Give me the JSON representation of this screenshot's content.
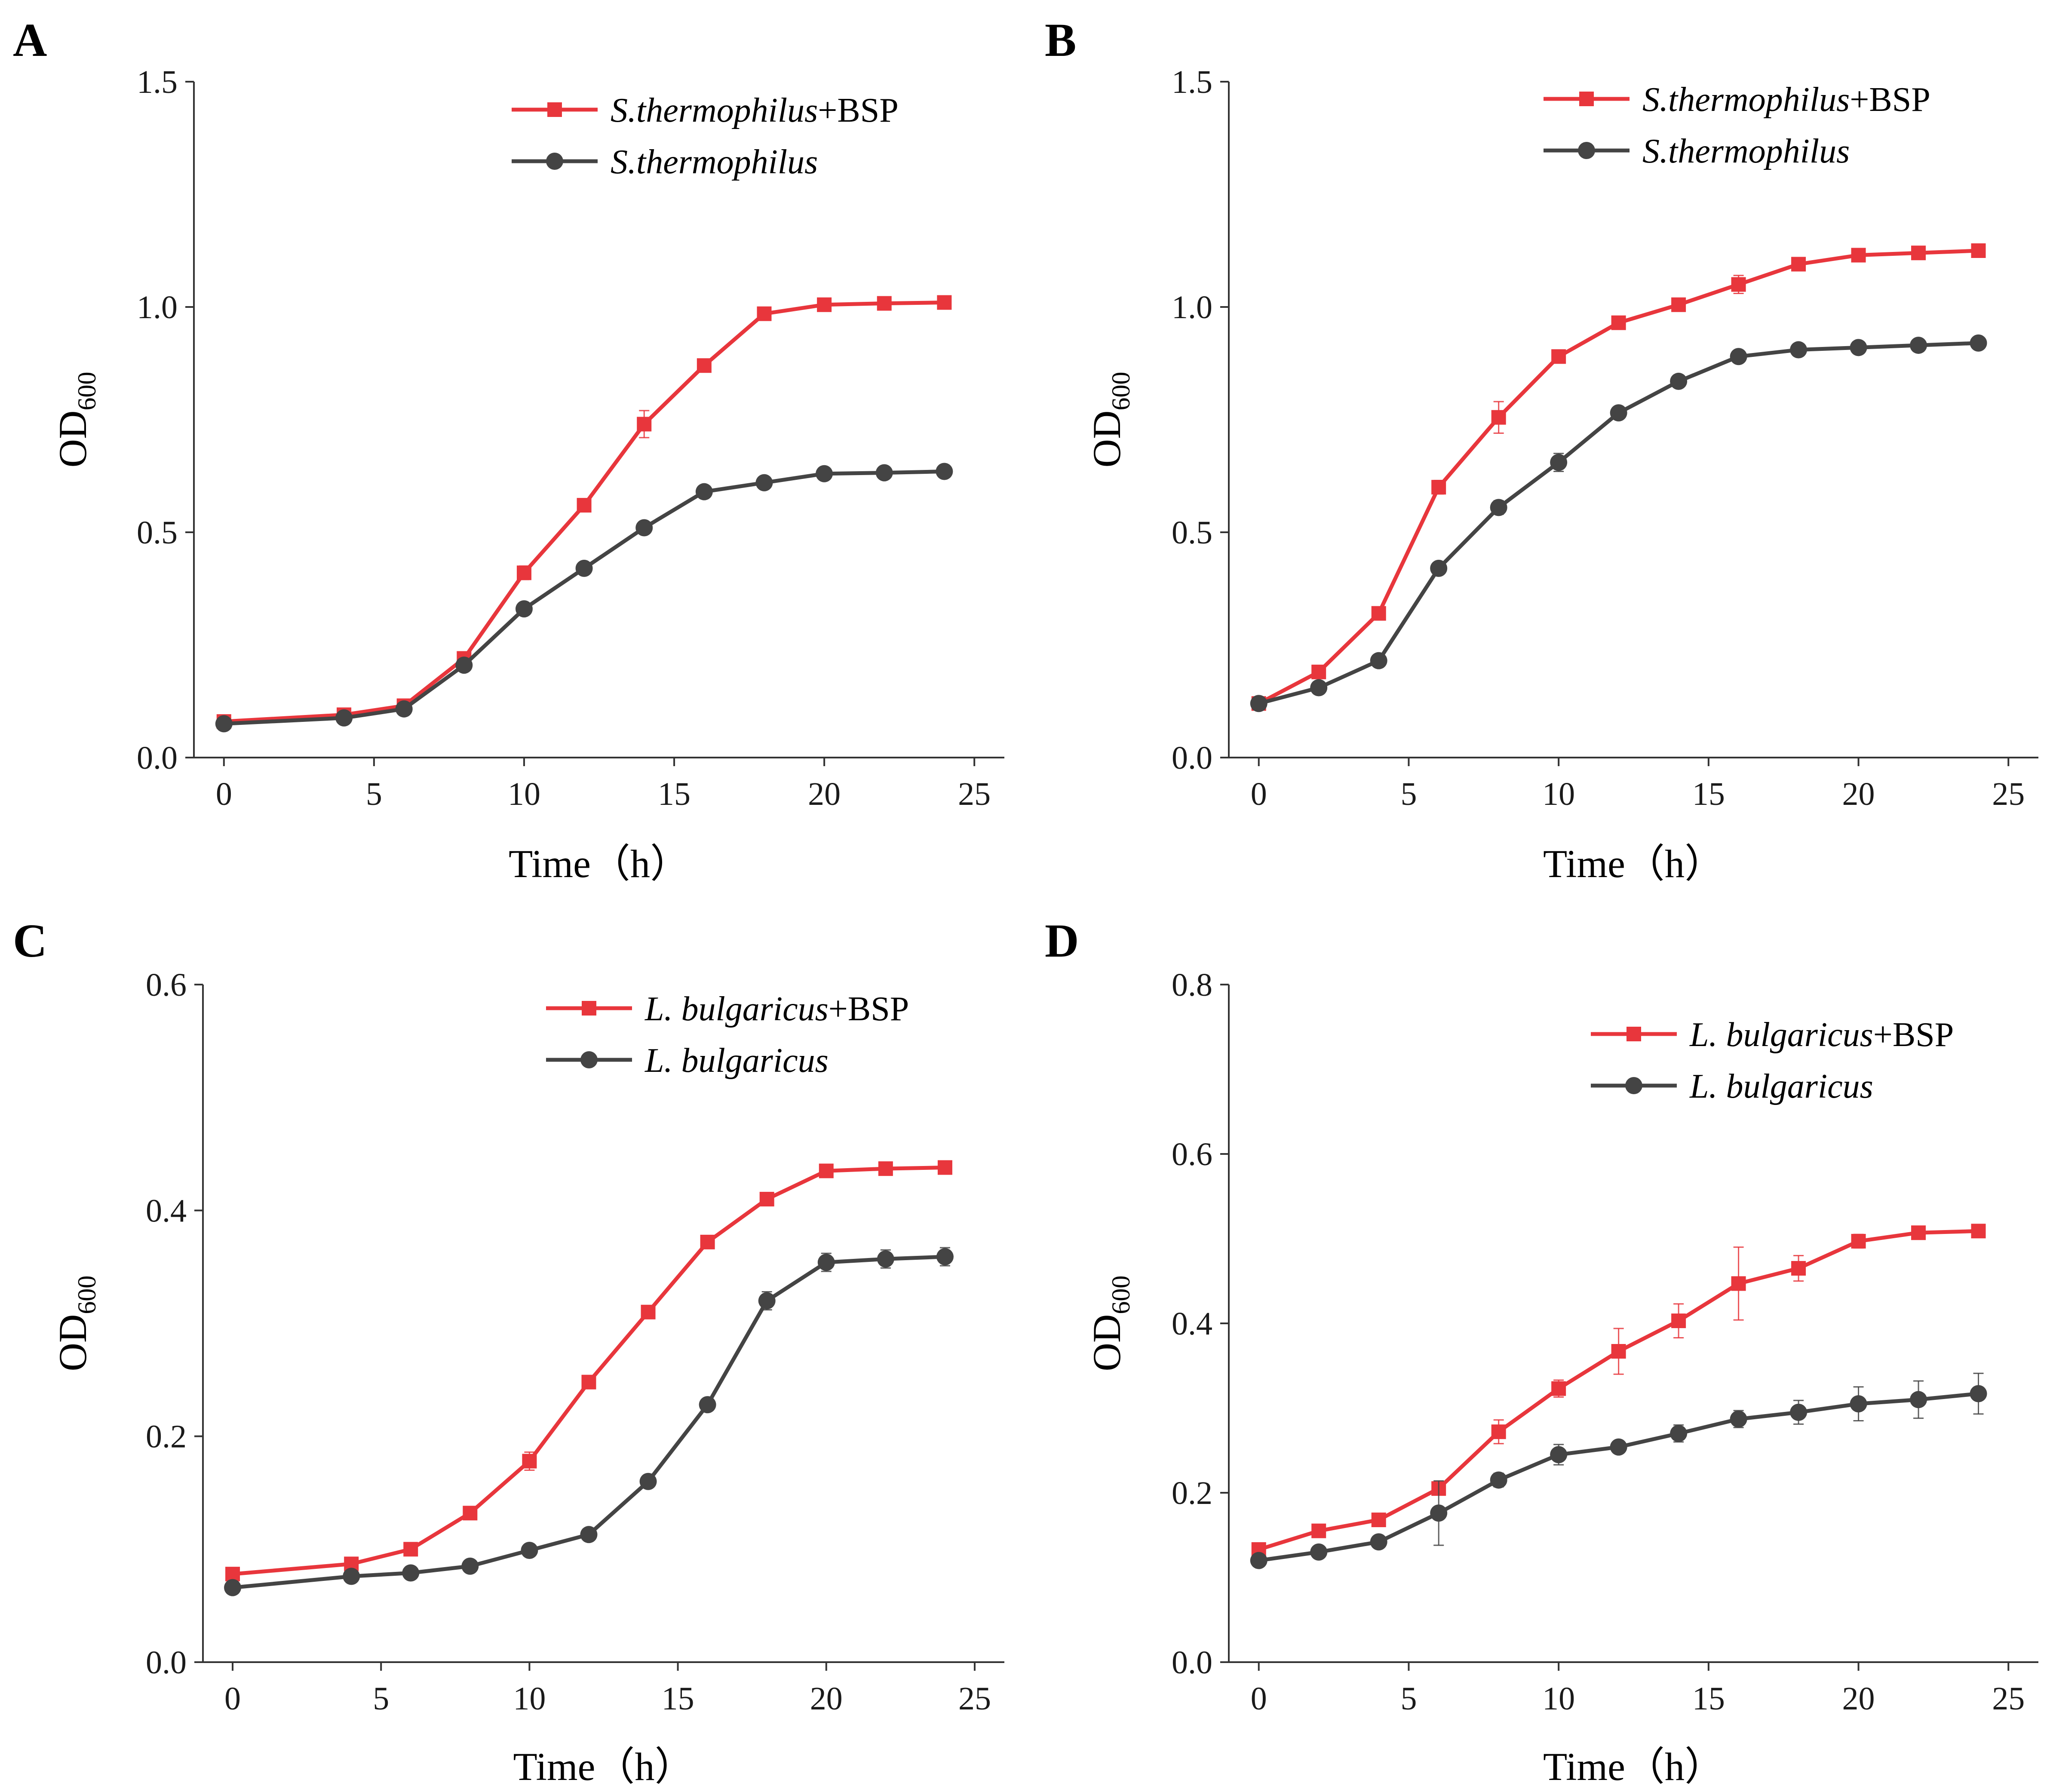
{
  "figure": {
    "colors": {
      "bsp": "#e8363c",
      "control": "#444444"
    }
  },
  "chart_data": [
    {
      "panel": "A",
      "type": "line",
      "xlabel": "Time（h）",
      "ylabel": "OD",
      "ylabel_sub": "600",
      "xlim": [
        -1,
        26
      ],
      "ylim": [
        0,
        1.5
      ],
      "xticks": [
        0,
        5,
        10,
        15,
        20,
        25
      ],
      "yticks": [
        0.0,
        0.5,
        1.0,
        1.5
      ],
      "yticklabels": [
        "0.0",
        "0.5",
        "1.0",
        "1.5"
      ],
      "legend_position": "top-right",
      "series": [
        {
          "name_italic": "S.thermophilus",
          "name_suffix": "+BSP",
          "marker": "square",
          "color": "#e8363c",
          "x": [
            0,
            4,
            6,
            8,
            10,
            12,
            14,
            16,
            18,
            20,
            22,
            24
          ],
          "y": [
            0.08,
            0.095,
            0.115,
            0.22,
            0.41,
            0.56,
            0.74,
            0.87,
            0.985,
            1.005,
            1.008,
            1.01
          ],
          "err": [
            0.005,
            0.005,
            0.005,
            0.01,
            0.015,
            0.01,
            0.03,
            0.01,
            0.01,
            0.005,
            0.005,
            0.005
          ]
        },
        {
          "name_italic": "S.thermophilus",
          "name_suffix": "",
          "marker": "circle",
          "color": "#444444",
          "x": [
            0,
            4,
            6,
            8,
            10,
            12,
            14,
            16,
            18,
            20,
            22,
            24
          ],
          "y": [
            0.075,
            0.088,
            0.108,
            0.205,
            0.33,
            0.42,
            0.51,
            0.59,
            0.61,
            0.63,
            0.632,
            0.635
          ],
          "err": [
            0.005,
            0.005,
            0.005,
            0.01,
            0.01,
            0.01,
            0.01,
            0.01,
            0.01,
            0.005,
            0.005,
            0.005
          ]
        }
      ]
    },
    {
      "panel": "B",
      "type": "line",
      "xlabel": "Time（h）",
      "ylabel": "OD",
      "ylabel_sub": "600",
      "xlim": [
        -1,
        26
      ],
      "ylim": [
        0,
        1.5
      ],
      "xticks": [
        0,
        5,
        10,
        15,
        20,
        25
      ],
      "yticks": [
        0.0,
        0.5,
        1.0,
        1.5
      ],
      "yticklabels": [
        "0.0",
        "0.5",
        "1.0",
        "1.5"
      ],
      "legend_position": "top-right",
      "series": [
        {
          "name_italic": "S.thermophilus",
          "name_suffix": "+BSP",
          "marker": "square",
          "color": "#e8363c",
          "x": [
            0,
            2,
            4,
            6,
            8,
            10,
            12,
            14,
            16,
            18,
            20,
            22,
            24
          ],
          "y": [
            0.12,
            0.19,
            0.32,
            0.6,
            0.755,
            0.89,
            0.965,
            1.005,
            1.05,
            1.095,
            1.115,
            1.12,
            1.125
          ],
          "err": [
            0.005,
            0.01,
            0.01,
            0.015,
            0.035,
            0.01,
            0.01,
            0.01,
            0.02,
            0.01,
            0.01,
            0.01,
            0.01
          ]
        },
        {
          "name_italic": "S.thermophilus",
          "name_suffix": "",
          "marker": "circle",
          "color": "#444444",
          "x": [
            0,
            2,
            4,
            6,
            8,
            10,
            12,
            14,
            16,
            18,
            20,
            22,
            24
          ],
          "y": [
            0.12,
            0.155,
            0.215,
            0.42,
            0.555,
            0.655,
            0.765,
            0.835,
            0.89,
            0.905,
            0.91,
            0.915,
            0.92
          ],
          "err": [
            0.005,
            0.01,
            0.01,
            0.01,
            0.015,
            0.02,
            0.01,
            0.01,
            0.01,
            0.01,
            0.01,
            0.01,
            0.01
          ]
        }
      ]
    },
    {
      "panel": "C",
      "type": "line",
      "xlabel": "Time（h）",
      "ylabel": "OD",
      "ylabel_sub": "600",
      "xlim": [
        -1,
        26
      ],
      "ylim": [
        0,
        0.6
      ],
      "xticks": [
        0,
        5,
        10,
        15,
        20,
        25
      ],
      "yticks": [
        0.0,
        0.2,
        0.4,
        0.6
      ],
      "yticklabels": [
        "0.0",
        "0.2",
        "0.4",
        "0.6"
      ],
      "legend_position": "top-right",
      "series": [
        {
          "name_italic": "L. bulgaricus",
          "name_suffix": "+BSP",
          "marker": "square",
          "color": "#e8363c",
          "x": [
            0,
            4,
            6,
            8,
            10,
            12,
            14,
            16,
            18,
            20,
            22,
            24
          ],
          "y": [
            0.078,
            0.087,
            0.1,
            0.132,
            0.178,
            0.248,
            0.31,
            0.372,
            0.41,
            0.435,
            0.437,
            0.438
          ],
          "err": [
            0.003,
            0.003,
            0.003,
            0.005,
            0.008,
            0.005,
            0.005,
            0.005,
            0.005,
            0.005,
            0.005,
            0.005
          ]
        },
        {
          "name_italic": "L. bulgaricus",
          "name_suffix": "",
          "marker": "circle",
          "color": "#444444",
          "x": [
            0,
            4,
            6,
            8,
            10,
            12,
            14,
            16,
            18,
            20,
            22,
            24
          ],
          "y": [
            0.066,
            0.076,
            0.079,
            0.085,
            0.099,
            0.113,
            0.16,
            0.228,
            0.32,
            0.354,
            0.357,
            0.359
          ],
          "err": [
            0.003,
            0.003,
            0.003,
            0.003,
            0.003,
            0.003,
            0.005,
            0.005,
            0.008,
            0.008,
            0.008,
            0.008
          ]
        }
      ]
    },
    {
      "panel": "D",
      "type": "line",
      "xlabel": "Time（h）",
      "ylabel": "OD",
      "ylabel_sub": "600",
      "xlim": [
        -1,
        26
      ],
      "ylim": [
        0,
        0.8
      ],
      "xticks": [
        0,
        5,
        10,
        15,
        20,
        25
      ],
      "yticks": [
        0.0,
        0.2,
        0.4,
        0.6,
        0.8
      ],
      "yticklabels": [
        "0.0",
        "0.2",
        "0.4",
        "0.6",
        "0.8"
      ],
      "legend_position": "upper-right",
      "series": [
        {
          "name_italic": "L. bulgaricus",
          "name_suffix": "+BSP",
          "marker": "square",
          "color": "#e8363c",
          "x": [
            0,
            2,
            4,
            6,
            8,
            10,
            12,
            14,
            16,
            18,
            20,
            22,
            24
          ],
          "y": [
            0.133,
            0.155,
            0.168,
            0.205,
            0.272,
            0.323,
            0.367,
            0.403,
            0.447,
            0.465,
            0.497,
            0.507,
            0.509
          ],
          "err": [
            0.005,
            0.005,
            0.005,
            0.007,
            0.014,
            0.01,
            0.027,
            0.02,
            0.043,
            0.015,
            0.008,
            0.005,
            0.005
          ]
        },
        {
          "name_italic": "L. bulgaricus",
          "name_suffix": "",
          "marker": "circle",
          "color": "#444444",
          "x": [
            0,
            2,
            4,
            6,
            8,
            10,
            12,
            14,
            16,
            18,
            20,
            22,
            24
          ],
          "y": [
            0.12,
            0.13,
            0.142,
            0.176,
            0.215,
            0.245,
            0.254,
            0.27,
            0.287,
            0.295,
            0.305,
            0.31,
            0.317
          ],
          "err": [
            0.005,
            0.005,
            0.005,
            0.038,
            0.008,
            0.012,
            0.005,
            0.01,
            0.01,
            0.014,
            0.02,
            0.022,
            0.024
          ]
        }
      ]
    }
  ]
}
